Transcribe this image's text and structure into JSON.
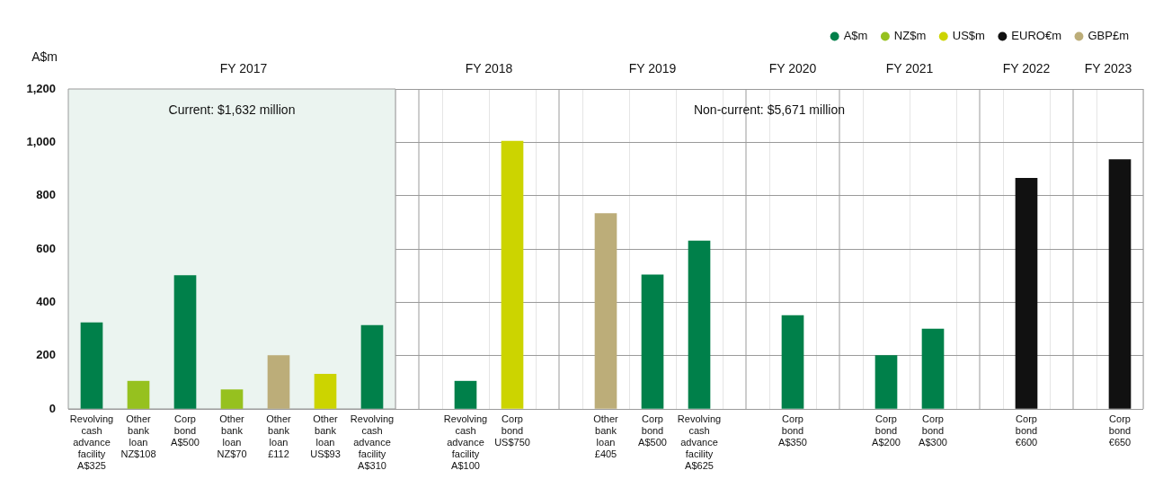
{
  "chart_data": {
    "type": "bar",
    "ylabel": "A$m",
    "ylim": [
      0,
      1200
    ],
    "yticks": [
      0,
      200,
      400,
      600,
      800,
      {
        "value": 1000,
        "label": "1,000"
      },
      {
        "value": 1200,
        "label": "1,200"
      }
    ],
    "grid": true,
    "legend": "top right",
    "categories": [
      "Revolving cash advance facility A$325",
      "Other bank loan NZ$108",
      "Corp bond A$500",
      "Other bank loan NZ$70",
      "Other bank loan £112",
      "Other bank loan US$93",
      "Revolving cash advance facility A$310",
      null,
      "Revolving cash advance facility A$100",
      "Corp bond US$750",
      null,
      "Other bank loan £405",
      "Corp bond A$500",
      "Revolving cash advance facility A$625",
      null,
      "Corp bond A$350",
      null,
      "Corp bond A$200",
      "Corp bond A$300",
      null,
      "Corp bond €600",
      null,
      "Corp bond €650"
    ],
    "series": [
      {
        "name": "A$m",
        "color": "#00804a",
        "values": [
          323,
          null,
          500,
          null,
          null,
          null,
          313,
          null,
          104,
          null,
          null,
          null,
          503,
          630,
          null,
          350,
          null,
          200,
          300,
          null,
          null,
          null,
          null
        ]
      },
      {
        "name": "NZ$m",
        "color": "#96c11f",
        "values": [
          null,
          104,
          null,
          72,
          null,
          null,
          null,
          null,
          null,
          null,
          null,
          null,
          null,
          null,
          null,
          null,
          null,
          null,
          null,
          null,
          null,
          null,
          null
        ]
      },
      {
        "name": "US$m",
        "color": "#ccd400",
        "values": [
          null,
          null,
          null,
          null,
          null,
          130,
          null,
          null,
          null,
          1004,
          null,
          null,
          null,
          null,
          null,
          null,
          null,
          null,
          null,
          null,
          null,
          null,
          null
        ]
      },
      {
        "name": "EURO€m",
        "color": "#111111",
        "values": [
          null,
          null,
          null,
          null,
          null,
          null,
          null,
          null,
          null,
          null,
          null,
          null,
          null,
          null,
          null,
          null,
          null,
          null,
          null,
          null,
          865,
          null,
          935
        ]
      },
      {
        "name": "GBP£m",
        "color": "#bcad79",
        "values": [
          null,
          null,
          null,
          null,
          200,
          null,
          null,
          null,
          null,
          null,
          null,
          733,
          null,
          null,
          null,
          null,
          null,
          null,
          null,
          null,
          null,
          null,
          null
        ]
      }
    ],
    "bands": [
      {
        "axis": "x",
        "from": "Revolving cash advance facility A$325",
        "to": "Revolving cash advance facility A$310",
        "label": "Current: $1,632 million",
        "color": "#ebf4f0"
      }
    ],
    "annotations": [
      "FY 2017",
      "FY 2018",
      "FY 2019",
      "FY 2020",
      "FY 2021",
      "FY 2022",
      "FY 2023",
      "Non-current: $5,671 million"
    ]
  }
}
